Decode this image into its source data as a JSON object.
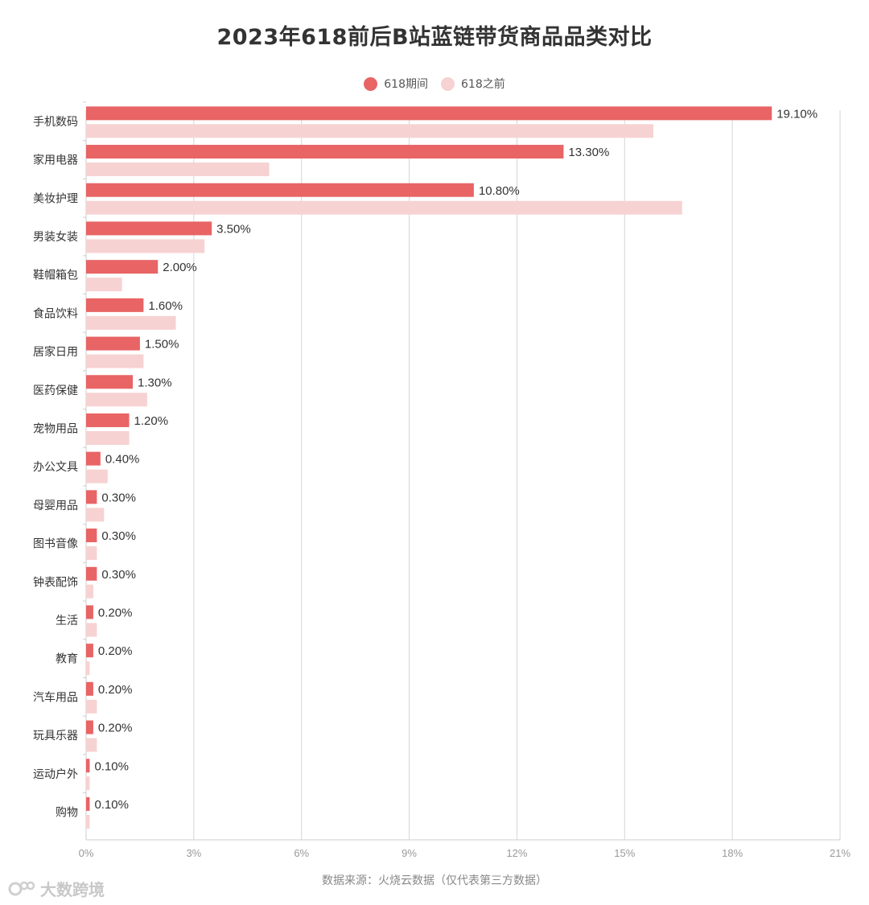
{
  "title": "2023年618前后B站蓝链带货商品品类对比",
  "source": "数据来源：火烧云数据（仅代表第三方数据）",
  "watermark": "大数跨境",
  "colors": {
    "series1": "#e86465",
    "series2": "#f7d2d2",
    "grid": "#d6d6d6",
    "axis_text": "#999999",
    "label_text": "#333333"
  },
  "legend": [
    {
      "name": "618期间",
      "color": "#e86465"
    },
    {
      "name": "618之前",
      "color": "#f7d2d2"
    }
  ],
  "chart_data": {
    "type": "bar",
    "orientation": "horizontal",
    "categories": [
      "手机数码",
      "家用电器",
      "美妆护理",
      "男装女装",
      "鞋帽箱包",
      "食品饮料",
      "居家日用",
      "医药保健",
      "宠物用品",
      "办公文具",
      "母婴用品",
      "图书音像",
      "钟表配饰",
      "生活",
      "教育",
      "汽车用品",
      "玩具乐器",
      "运动户外",
      "购物"
    ],
    "series": [
      {
        "name": "618期间",
        "values": [
          19.1,
          13.3,
          10.8,
          3.5,
          2.0,
          1.6,
          1.5,
          1.3,
          1.2,
          0.4,
          0.3,
          0.3,
          0.3,
          0.2,
          0.2,
          0.2,
          0.2,
          0.1,
          0.1
        ],
        "data_labels": [
          "19.10%",
          "13.30%",
          "10.80%",
          "3.50%",
          "2.00%",
          "1.60%",
          "1.50%",
          "1.30%",
          "1.20%",
          "0.40%",
          "0.30%",
          "0.30%",
          "0.30%",
          "0.20%",
          "0.20%",
          "0.20%",
          "0.20%",
          "0.10%",
          "0.10%"
        ]
      },
      {
        "name": "618之前",
        "values": [
          15.8,
          5.1,
          16.6,
          3.3,
          1.0,
          2.5,
          1.6,
          1.7,
          1.2,
          0.6,
          0.5,
          0.3,
          0.2,
          0.3,
          0.1,
          0.3,
          0.3,
          0.1,
          0.1
        ]
      }
    ],
    "xlim": [
      0,
      21
    ],
    "xticks": [
      0,
      3,
      6,
      9,
      12,
      15,
      18,
      21
    ],
    "xtick_labels": [
      "0%",
      "3%",
      "6%",
      "9%",
      "12%",
      "15%",
      "18%",
      "21%"
    ],
    "grid": true,
    "legend_position": "top-center"
  }
}
